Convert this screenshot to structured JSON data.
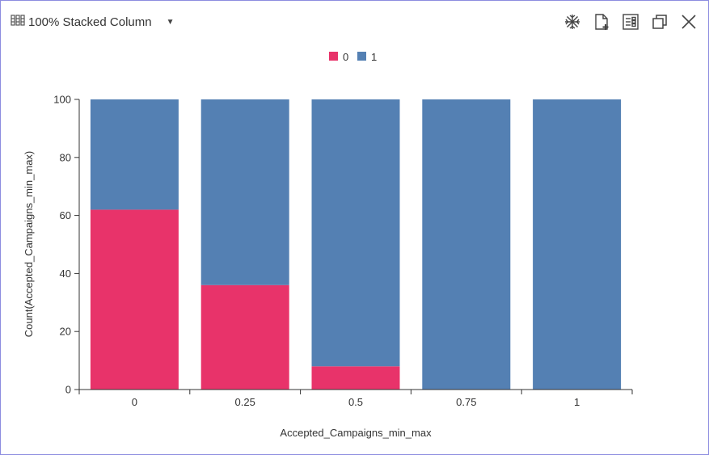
{
  "toolbar": {
    "chart_type_label": "100% Stacked Column",
    "icons": [
      "chart-type-icon",
      "caret-down-icon",
      "snowflake-icon",
      "add-file-icon",
      "list-settings-icon",
      "duplicate-icon",
      "close-icon"
    ]
  },
  "colors": {
    "series0": "#e8336a",
    "series1": "#5480b3"
  },
  "chart_data": {
    "type": "bar",
    "stacking": "percent",
    "categories": [
      "0",
      "0.25",
      "0.5",
      "0.75",
      "1"
    ],
    "series": [
      {
        "name": "0",
        "values": [
          62,
          36,
          8,
          0,
          0
        ]
      },
      {
        "name": "1",
        "values": [
          38,
          64,
          92,
          100,
          100
        ]
      }
    ],
    "xlabel": "Accepted_Campaigns_min_max",
    "ylabel": "Count(Accepted_Campaigns_min_max)",
    "ylim": [
      0,
      100
    ],
    "yticks": [
      "0",
      "20",
      "40",
      "60",
      "80",
      "100"
    ],
    "legend_position": "top-center",
    "grid": false
  }
}
